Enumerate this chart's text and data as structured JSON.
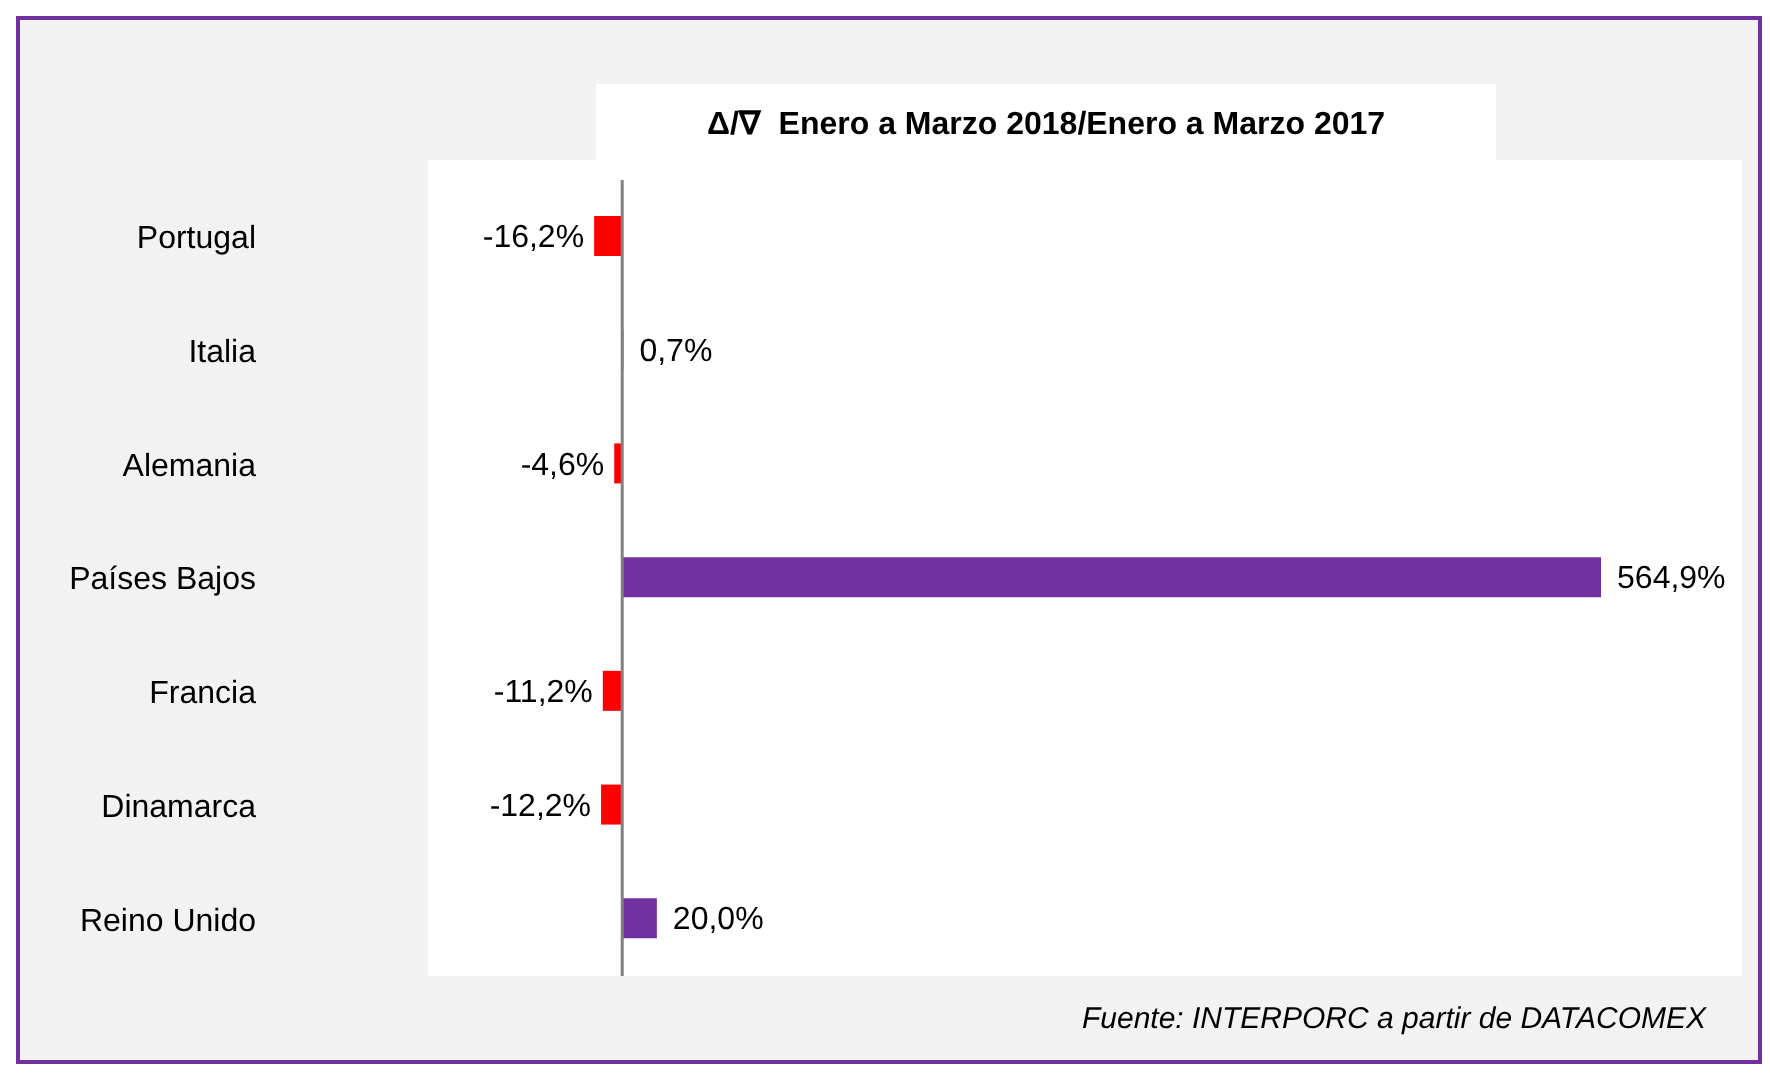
{
  "chart_data": {
    "type": "bar",
    "orientation": "horizontal",
    "title": "Δ/∇  Enero a Marzo 2018/Enero a Marzo 2017",
    "categories": [
      "Portugal",
      "Italia",
      "Alemania",
      "Países Bajos",
      "Francia",
      "Dinamarca",
      "Reino Unido"
    ],
    "values": [
      -16.2,
      0.7,
      -4.6,
      564.9,
      -11.2,
      -12.2,
      20.0
    ],
    "colors": [
      "#ff0000",
      "#7030a0",
      "#ff0000",
      "#7030a0",
      "#ff0000",
      "#ff0000",
      "#7030a0"
    ],
    "value_labels": [
      "-16,2%",
      "0,7%",
      "-4,6%",
      "564,9%",
      "-11,2%",
      "-12,2%",
      "20,0%"
    ],
    "annotations": [
      "Fuente: INTERPORC  a partir de DATACOMEX"
    ],
    "grid": false,
    "legend": false
  }
}
